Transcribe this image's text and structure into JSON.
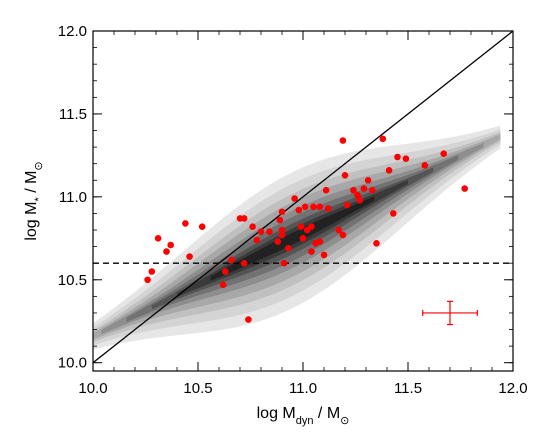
{
  "chart_data": {
    "type": "scatter",
    "xlabel": {
      "base": "log M",
      "sub": "dyn",
      "suffix": " / M",
      "sun": "⊙"
    },
    "ylabel": {
      "base": "log M",
      "sub": "*",
      "suffix": " / M",
      "sun": "⊙"
    },
    "xlim": [
      10.0,
      12.0
    ],
    "ylim": [
      9.95,
      12.0
    ],
    "x_ticks": [
      "10.0",
      "10.5",
      "11.0",
      "11.5",
      "12.0"
    ],
    "y_ticks": [
      "10.0",
      "10.5",
      "11.0",
      "11.5",
      "12.0"
    ],
    "grid": false,
    "colors": {
      "points": "#ff0000",
      "errorbar": "#ff0000",
      "lines": "#000000"
    },
    "background_density": {
      "description_free": true,
      "ridge_slope": 0.62,
      "ridge_intercept_at_10": 10.16,
      "x_range": [
        10.0,
        11.95
      ]
    },
    "one_to_one_line": {
      "x": [
        10.0,
        12.0
      ],
      "y": [
        10.0,
        12.0
      ]
    },
    "threshold_line": {
      "y": 10.6,
      "style": "dashed"
    },
    "error_bar": {
      "x": 11.7,
      "y": 10.3,
      "xerr": 0.13,
      "yerr": 0.07
    },
    "series": [
      {
        "points": [
          [
            10.26,
            10.5
          ],
          [
            10.28,
            10.55
          ],
          [
            10.31,
            10.75
          ],
          [
            10.35,
            10.67
          ],
          [
            10.37,
            10.71
          ],
          [
            10.44,
            10.84
          ],
          [
            10.46,
            10.64
          ],
          [
            10.52,
            10.82
          ],
          [
            10.62,
            10.47
          ],
          [
            10.63,
            10.55
          ],
          [
            10.66,
            10.62
          ],
          [
            10.7,
            10.87
          ],
          [
            10.72,
            10.87
          ],
          [
            10.72,
            10.6
          ],
          [
            10.74,
            10.26
          ],
          [
            10.76,
            10.82
          ],
          [
            10.78,
            10.74
          ],
          [
            10.8,
            10.79
          ],
          [
            10.84,
            10.79
          ],
          [
            10.88,
            10.73
          ],
          [
            10.89,
            10.86
          ],
          [
            10.9,
            10.91
          ],
          [
            10.9,
            10.8
          ],
          [
            10.9,
            10.77
          ],
          [
            10.91,
            10.6
          ],
          [
            10.93,
            10.69
          ],
          [
            10.96,
            10.99
          ],
          [
            10.98,
            10.92
          ],
          [
            10.99,
            10.82
          ],
          [
            11.0,
            10.75
          ],
          [
            11.01,
            10.94
          ],
          [
            11.02,
            10.8
          ],
          [
            11.04,
            10.82
          ],
          [
            11.04,
            10.67
          ],
          [
            11.05,
            10.94
          ],
          [
            11.06,
            10.72
          ],
          [
            11.08,
            10.94
          ],
          [
            11.08,
            10.73
          ],
          [
            11.1,
            10.65
          ],
          [
            11.11,
            11.04
          ],
          [
            11.12,
            10.93
          ],
          [
            11.17,
            10.8
          ],
          [
            11.19,
            10.77
          ],
          [
            11.19,
            11.34
          ],
          [
            11.2,
            11.13
          ],
          [
            11.21,
            10.95
          ],
          [
            11.24,
            11.04
          ],
          [
            11.26,
            11.01
          ],
          [
            11.27,
            10.98
          ],
          [
            11.29,
            11.05
          ],
          [
            11.31,
            11.1
          ],
          [
            11.33,
            11.04
          ],
          [
            11.35,
            10.72
          ],
          [
            11.38,
            11.35
          ],
          [
            11.41,
            11.16
          ],
          [
            11.43,
            10.9
          ],
          [
            11.45,
            11.24
          ],
          [
            11.49,
            11.23
          ],
          [
            11.58,
            11.19
          ],
          [
            11.67,
            11.26
          ],
          [
            11.77,
            11.05
          ]
        ]
      }
    ]
  }
}
